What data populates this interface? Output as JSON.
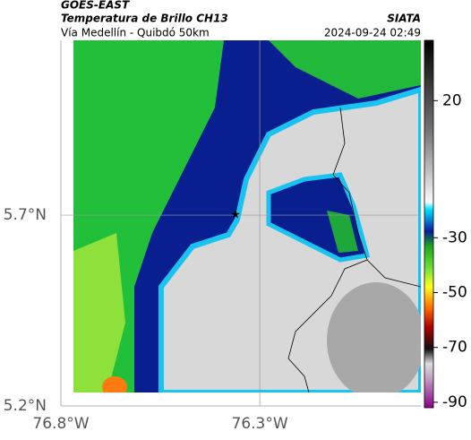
{
  "header": {
    "satellite": "GOES-EAST",
    "title": "Temperatura de Brillo CH13",
    "subtitle": "Vía Medellín - Quibdó 50km",
    "brand": "SIATA",
    "timestamp": "2024-09-24 02:49"
  },
  "map": {
    "xlim": [
      -76.8,
      -75.895
    ],
    "ylim": [
      5.2,
      6.158
    ],
    "xticks": [
      {
        "value": -76.8,
        "label": "76.8°W"
      },
      {
        "value": -76.3,
        "label": "76.3°W"
      }
    ],
    "yticks": [
      {
        "value": 5.2,
        "label": "5.2°N"
      },
      {
        "value": 5.7,
        "label": "5.7°N"
      }
    ],
    "grid": true
  },
  "colorbar": {
    "clim": [
      -92,
      42
    ],
    "ticks": [
      20,
      -30,
      -50,
      -70,
      -90
    ]
  }
}
